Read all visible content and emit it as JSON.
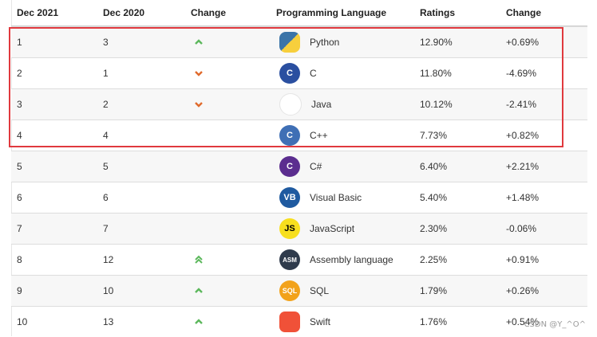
{
  "columns": [
    "Dec 2021",
    "Dec 2020",
    "Change",
    "Programming Language",
    "Ratings",
    "Change"
  ],
  "rows": [
    {
      "rank": "1",
      "prev": "3",
      "trend": "up",
      "icon": "python-logo-icon",
      "icon_text": "",
      "language": "Python",
      "rating": "12.90%",
      "change": "+0.69%"
    },
    {
      "rank": "2",
      "prev": "1",
      "trend": "down",
      "icon": "c-logo-icon",
      "icon_text": "C",
      "language": "C",
      "rating": "11.80%",
      "change": "-4.69%"
    },
    {
      "rank": "3",
      "prev": "2",
      "trend": "down",
      "icon": "java-logo-icon",
      "icon_text": "",
      "language": "Java",
      "rating": "10.12%",
      "change": "-2.41%"
    },
    {
      "rank": "4",
      "prev": "4",
      "trend": "",
      "icon": "cpp-logo-icon",
      "icon_text": "C",
      "language": "C++",
      "rating": "7.73%",
      "change": "+0.82%"
    },
    {
      "rank": "5",
      "prev": "5",
      "trend": "",
      "icon": "csharp-logo-icon",
      "icon_text": "C",
      "language": "C#",
      "rating": "6.40%",
      "change": "+2.21%"
    },
    {
      "rank": "6",
      "prev": "6",
      "trend": "",
      "icon": "visual-basic-logo-icon",
      "icon_text": "VB",
      "language": "Visual Basic",
      "rating": "5.40%",
      "change": "+1.48%"
    },
    {
      "rank": "7",
      "prev": "7",
      "trend": "",
      "icon": "javascript-logo-icon",
      "icon_text": "JS",
      "language": "JavaScript",
      "rating": "2.30%",
      "change": "-0.06%"
    },
    {
      "rank": "8",
      "prev": "12",
      "trend": "double-up",
      "icon": "assembly-logo-icon",
      "icon_text": "ASM",
      "language": "Assembly language",
      "rating": "2.25%",
      "change": "+0.91%"
    },
    {
      "rank": "9",
      "prev": "10",
      "trend": "up",
      "icon": "sql-logo-icon",
      "icon_text": "SQL",
      "language": "SQL",
      "rating": "1.79%",
      "change": "+0.26%"
    },
    {
      "rank": "10",
      "prev": "13",
      "trend": "up",
      "icon": "swift-logo-icon",
      "icon_text": "",
      "language": "Swift",
      "rating": "1.76%",
      "change": "+0.54%"
    }
  ],
  "icon_colors": {
    "python-logo-icon": "#3b74a8",
    "c-logo-icon": "#2a4fa0",
    "java-logo-icon": "#e76f00",
    "cpp-logo-icon": "#3f6fb5",
    "csharp-logo-icon": "#5b2d8f",
    "visual-basic-logo-icon": "#1f5aa0",
    "javascript-logo-icon": "#f7df1e",
    "assembly-logo-icon": "#2f3b4c",
    "sql-logo-icon": "#f2a21b",
    "swift-logo-icon": "#f05138"
  },
  "trend_colors": {
    "up": "#5cb85c",
    "down": "#e06a2c"
  },
  "watermark": "CSDN @Y_^O^"
}
